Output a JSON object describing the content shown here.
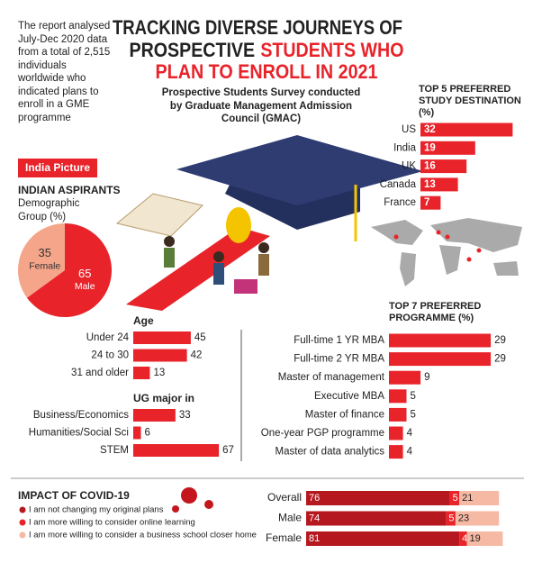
{
  "header": {
    "title": "TRACKING DIVERSE JOURNEYS OF",
    "title_line2": "PROSPECTIVE",
    "title_highlight_line2": "STUDENTS WHO",
    "title_highlight_line3": "PLAN TO ENROLL IN 2021",
    "intro": "The report analysed July-Dec 2020 data from a total of 2,515 individuals worldwide who indicated plans to enroll in a GME programme",
    "survey_note": "Prospective Students Survey conducted by Graduate Management Admission Council (GMAC)",
    "section_tag": "India Picture"
  },
  "chart_data": [
    {
      "type": "pie",
      "title": "INDIAN ASPIRANTS",
      "subtitle": "Demographic Group (%)",
      "categories": [
        "Male",
        "Female"
      ],
      "values": [
        65,
        35
      ],
      "colors": [
        "#e8232a",
        "#f4a58a"
      ]
    },
    {
      "type": "bar",
      "orientation": "horizontal",
      "title": "Age",
      "label_position": "outside",
      "color": "#e8232a",
      "categories": [
        "Under 24",
        "24 to 30",
        "31 and older"
      ],
      "values": [
        45,
        42,
        13
      ]
    },
    {
      "type": "bar",
      "orientation": "horizontal",
      "title": "UG major in",
      "label_position": "outside",
      "color": "#e8232a",
      "categories": [
        "Business/Economics",
        "Humanities/Social Sci",
        "STEM"
      ],
      "values": [
        33,
        6,
        67
      ]
    },
    {
      "type": "bar",
      "orientation": "horizontal",
      "title": "TOP 5 PREFERRED STUDY DESTINATION (%)",
      "label_position": "inside",
      "color": "#e8232a",
      "categories": [
        "US",
        "India",
        "UK",
        "Canada",
        "France"
      ],
      "values": [
        32,
        19,
        16,
        13,
        7
      ]
    },
    {
      "type": "bar",
      "orientation": "horizontal",
      "title": "TOP 7 PREFERRED PROGRAMME (%)",
      "label_position": "outside",
      "color": "#e8232a",
      "categories": [
        "Full-time 1 YR MBA",
        "Full-time 2 YR MBA",
        "Master of management",
        "Executive MBA",
        "Master of finance",
        "One-year PGP programme",
        "Master of data analytics"
      ],
      "values": [
        29,
        29,
        9,
        5,
        5,
        4,
        4
      ]
    },
    {
      "type": "stacked_bar",
      "orientation": "horizontal",
      "title": "IMPACT OF COVID-19",
      "categories": [
        "Overall",
        "Male",
        "Female"
      ],
      "series": [
        {
          "name": "I am not changing my original plans",
          "color": "#b5191f",
          "values": [
            76,
            74,
            81
          ]
        },
        {
          "name": "I am more willing to consider online learning",
          "color": "#e8232a",
          "values": [
            5,
            5,
            4
          ]
        },
        {
          "name": "I am more willing to consider a business school closer home",
          "color": "#f6b9a3",
          "values": [
            21,
            23,
            19
          ]
        }
      ]
    }
  ]
}
